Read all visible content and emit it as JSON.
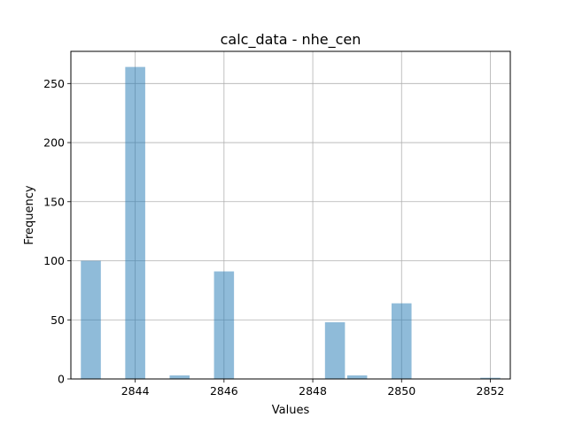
{
  "chart_data": {
    "type": "bar",
    "title": "calc_data - nhe_cen",
    "xlabel": "Values",
    "ylabel": "Frequency",
    "xlim": [
      2842.55,
      2852.45
    ],
    "ylim": [
      0,
      277.2
    ],
    "x_ticks": [
      2844,
      2846,
      2848,
      2850,
      2852
    ],
    "y_ticks": [
      0,
      50,
      100,
      150,
      200,
      250
    ],
    "bin_width": 0.45,
    "bins": [
      {
        "x": 2843.0,
        "value": 100
      },
      {
        "x": 2844.0,
        "value": 264
      },
      {
        "x": 2845.0,
        "value": 3
      },
      {
        "x": 2846.0,
        "value": 91
      },
      {
        "x": 2848.5,
        "value": 48
      },
      {
        "x": 2849.0,
        "value": 3
      },
      {
        "x": 2850.0,
        "value": 64
      },
      {
        "x": 2852.0,
        "value": 1
      }
    ],
    "bar_color": "#1f77b4",
    "bar_opacity": 0.5,
    "grid": true,
    "legend": "none"
  }
}
